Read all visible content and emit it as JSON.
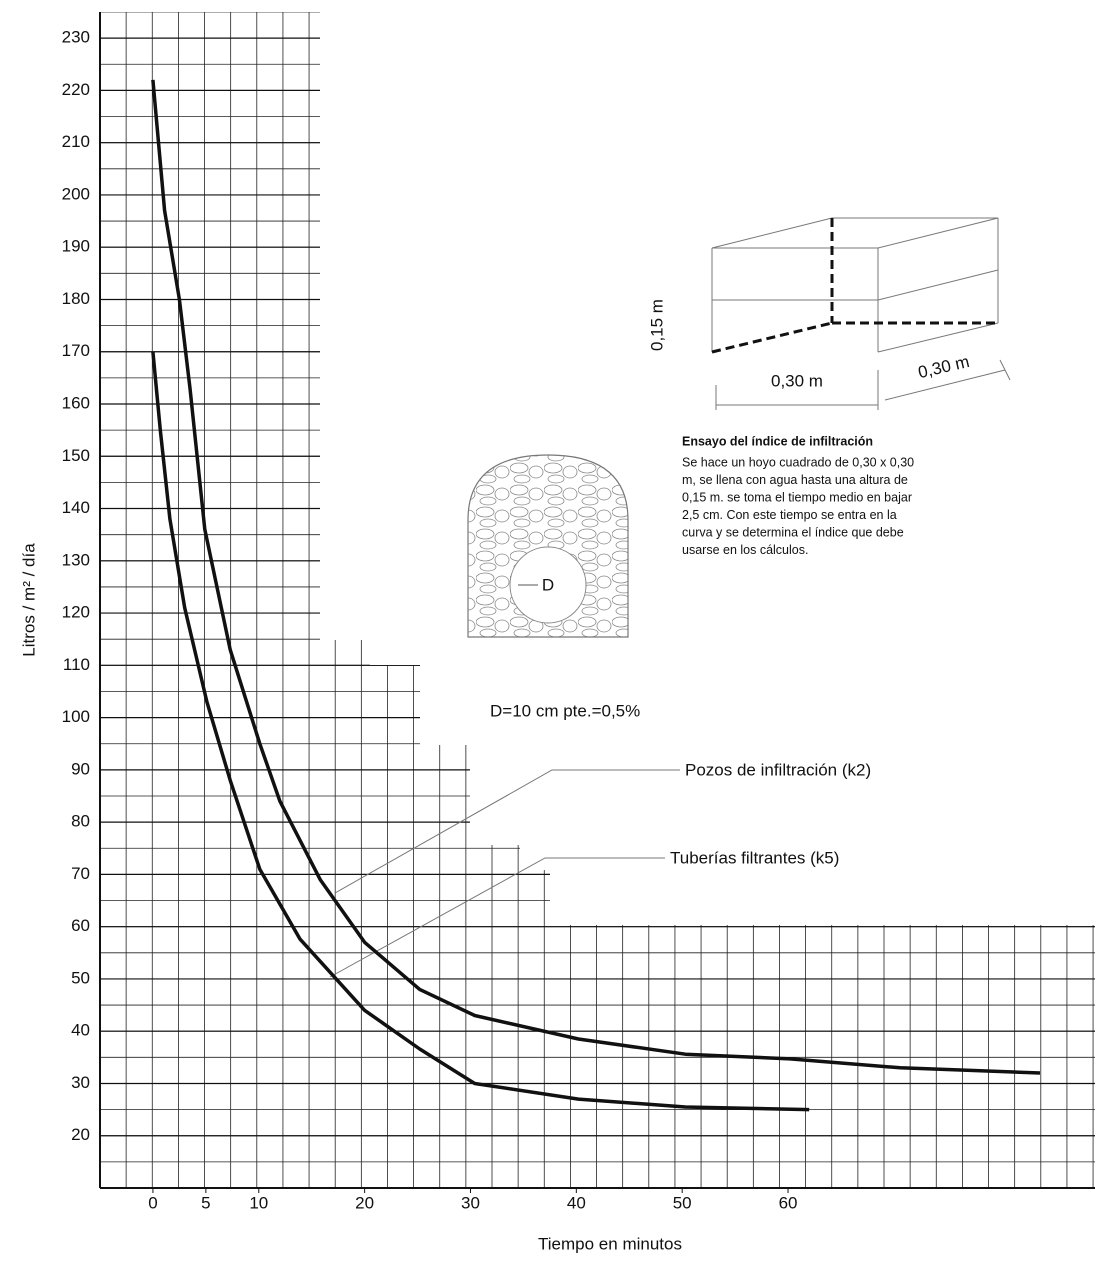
{
  "chart_data": {
    "type": "line",
    "y_label": "Litros / m² / día",
    "x_label": "Tiempo en minutos",
    "xlim": [
      -5,
      89
    ],
    "ylim": [
      10,
      235
    ],
    "xticks": [
      0,
      5,
      10,
      20,
      30,
      40,
      50,
      60
    ],
    "yticks": [
      20,
      30,
      40,
      50,
      60,
      70,
      80,
      90,
      100,
      110,
      120,
      130,
      140,
      150,
      160,
      170,
      180,
      190,
      200,
      210,
      220,
      230
    ],
    "grid": true,
    "series": [
      {
        "name": "Pozos de infiltración (k2)",
        "color": "#111111",
        "x": [
          0,
          1.1,
          2.5,
          3.5,
          4.9,
          7.3,
          10.1,
          12,
          15.8,
          20,
          25.2,
          30.4,
          40.2,
          50.3,
          60.2,
          70.6,
          83.8
        ],
        "values": [
          222,
          197,
          180,
          163,
          136,
          113,
          95,
          84,
          69,
          57,
          48,
          43,
          38.5,
          35.6,
          34.7,
          33,
          32
        ]
      },
      {
        "name": "Tuberías filtrantes (k5)",
        "color": "#111111",
        "x": [
          0,
          0.7,
          1.6,
          3.0,
          5.1,
          7.3,
          10.1,
          13.9,
          20,
          25.2,
          30.4,
          40.2,
          50.3,
          62
        ],
        "values": [
          170,
          155,
          138,
          121,
          103,
          88,
          71,
          57.6,
          44,
          36.6,
          30,
          27,
          25.5,
          25
        ]
      }
    ],
    "annotations": {
      "pipe_label": "D",
      "pipe_spec": "D=10 cm  pte.=0,5%",
      "height_dim": "0,15 m",
      "width_dim": "0,30 m",
      "depth_dim": "0,30 m",
      "test_title": "Ensayo  del índice de infiltración",
      "test_text": [
        "Se hace un hoyo cuadrado de  0,30 x 0,30",
        "m, se llena con agua hasta una altura de",
        "0,15 m. se toma el tiempo medio en bajar",
        "2,5 cm. Con este tiempo se entra en la",
        "curva y se determina el índice que debe",
        "usarse en los cálculos."
      ]
    }
  }
}
